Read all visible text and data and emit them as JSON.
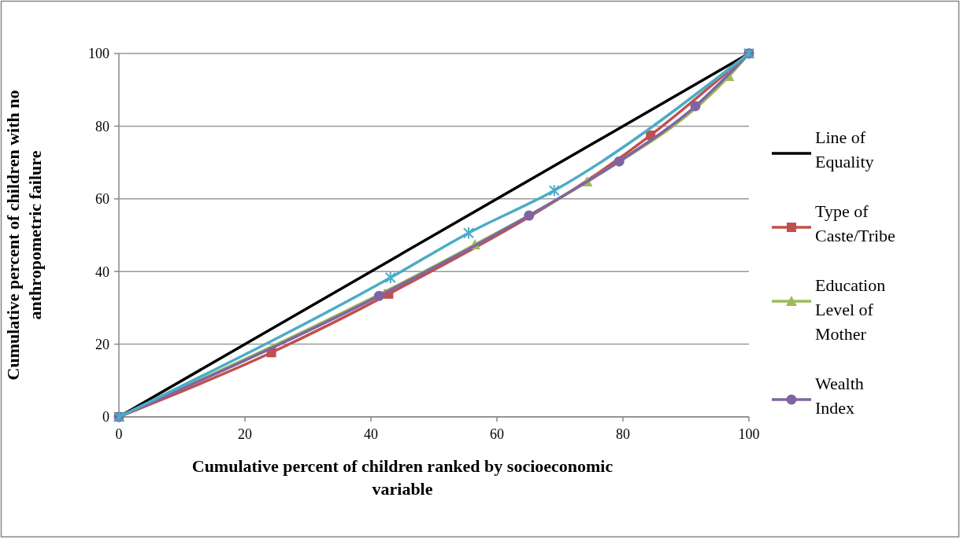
{
  "chart_data": {
    "type": "line",
    "xlabel": "Cumulative percent of children ranked by socioeconomic variable",
    "ylabel": "Cumulative percent of children with no anthropometric failure",
    "xlim": [
      0,
      100
    ],
    "ylim": [
      0,
      100
    ],
    "xticks": [
      0,
      20,
      40,
      60,
      80,
      100
    ],
    "yticks": [
      0,
      20,
      40,
      60,
      80,
      100
    ],
    "grid": "y",
    "legend": "right",
    "series": [
      {
        "name": "Line of Equality",
        "color": "#000000",
        "marker": "none",
        "x": [
          0,
          100
        ],
        "values": [
          0,
          100
        ]
      },
      {
        "name": "Type of Caste/Tribe",
        "color": "#c0504d",
        "marker": "square",
        "x": [
          0,
          24.2,
          42.8,
          84.4,
          100
        ],
        "values": [
          0,
          17.7,
          33.8,
          77.5,
          100
        ]
      },
      {
        "name": "Education Level of Mother",
        "color": "#9bbb59",
        "marker": "triangle",
        "x": [
          0,
          56.5,
          74.3,
          96.8,
          100
        ],
        "values": [
          0,
          47.4,
          64.7,
          93.7,
          100
        ]
      },
      {
        "name": "Wealth Index",
        "color": "#8064a2",
        "marker": "circle",
        "x": [
          0,
          41.3,
          65.1,
          79.4,
          91.5,
          100
        ],
        "values": [
          0,
          33.3,
          55.4,
          70.3,
          85.5,
          100
        ]
      },
      {
        "color": "#4bacc6",
        "marker": "cross",
        "x": [
          0,
          43.1,
          55.5,
          69.1,
          100
        ],
        "values": [
          0,
          38.3,
          50.6,
          62.3,
          100
        ]
      }
    ]
  }
}
